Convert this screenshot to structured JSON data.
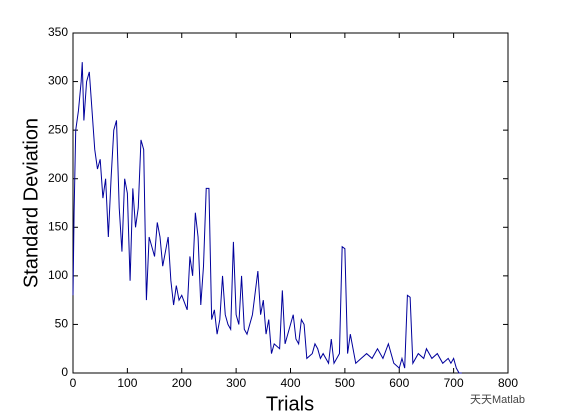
{
  "chart_data": {
    "type": "line",
    "xlabel": "Trials",
    "ylabel": "Standard Deviation",
    "watermark": "天天Matlab",
    "x": [
      0,
      2,
      5,
      10,
      15,
      17,
      20,
      25,
      30,
      35,
      40,
      45,
      50,
      55,
      60,
      65,
      70,
      75,
      80,
      85,
      90,
      95,
      100,
      105,
      110,
      115,
      120,
      125,
      130,
      135,
      140,
      145,
      150,
      155,
      160,
      165,
      170,
      175,
      180,
      185,
      190,
      195,
      200,
      210,
      215,
      220,
      225,
      230,
      235,
      240,
      245,
      250,
      255,
      260,
      265,
      270,
      275,
      280,
      285,
      290,
      295,
      300,
      305,
      310,
      315,
      320,
      330,
      340,
      345,
      350,
      355,
      360,
      365,
      370,
      380,
      385,
      390,
      395,
      405,
      410,
      415,
      420,
      425,
      430,
      440,
      445,
      450,
      455,
      460,
      470,
      475,
      480,
      490,
      495,
      500,
      505,
      510,
      520,
      530,
      540,
      550,
      560,
      570,
      580,
      590,
      600,
      605,
      610,
      615,
      620,
      625,
      635,
      645,
      650,
      660,
      670,
      680,
      690,
      695,
      700,
      705,
      710,
      715
    ],
    "series": [
      {
        "name": "Standard Deviation",
        "color": "#00009c",
        "values": [
          80,
          165,
          250,
          270,
          300,
          320,
          260,
          300,
          310,
          270,
          230,
          210,
          220,
          180,
          200,
          140,
          200,
          250,
          260,
          170,
          125,
          200,
          185,
          95,
          190,
          150,
          170,
          240,
          230,
          75,
          140,
          130,
          120,
          155,
          140,
          110,
          125,
          140,
          95,
          70,
          90,
          75,
          80,
          65,
          120,
          100,
          165,
          140,
          70,
          110,
          190,
          190,
          55,
          65,
          40,
          55,
          100,
          60,
          50,
          45,
          135,
          60,
          50,
          100,
          45,
          40,
          60,
          105,
          60,
          75,
          40,
          55,
          20,
          30,
          25,
          85,
          30,
          40,
          60,
          35,
          30,
          55,
          50,
          15,
          20,
          30,
          25,
          15,
          20,
          10,
          35,
          10,
          20,
          130,
          128,
          20,
          40,
          10,
          15,
          20,
          15,
          25,
          15,
          30,
          10,
          5,
          15,
          5,
          80,
          78,
          10,
          20,
          15,
          25,
          15,
          20,
          10,
          15,
          10,
          15,
          5,
          0,
          0
        ]
      }
    ],
    "xlim": [
      0,
      800
    ],
    "xticks": [
      0,
      100,
      200,
      300,
      400,
      500,
      600,
      700,
      800
    ],
    "ylim": [
      0,
      350
    ],
    "yticks": [
      0,
      50,
      100,
      150,
      200,
      250,
      300,
      350
    ],
    "grid": false
  }
}
